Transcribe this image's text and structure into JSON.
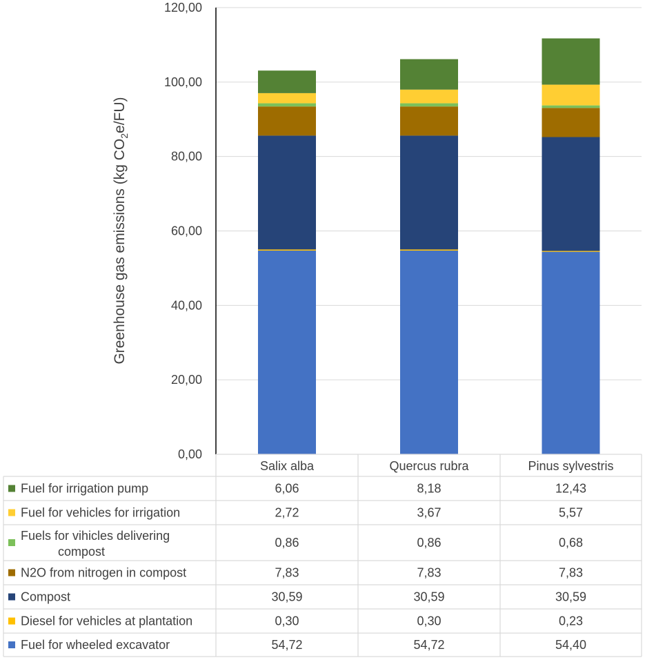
{
  "chart_data": {
    "type": "bar",
    "stacked": true,
    "categories": [
      "Salix alba",
      "Quercus rubra",
      "Pinus sylvestris"
    ],
    "ylabel_main": "Greenhouse gas emissions (kg CO",
    "ylabel_sub": "2",
    "ylabel_tail": "e/FU)",
    "ylim": [
      0,
      120
    ],
    "yticks": [
      0,
      20,
      40,
      60,
      80,
      100,
      120
    ],
    "ytick_labels": [
      "0,00",
      "20,00",
      "40,00",
      "60,00",
      "80,00",
      "100,00",
      "120,00"
    ],
    "grid": true,
    "series": [
      {
        "name": "Fuel for wheeled excavator",
        "color": "#4472C4",
        "values": [
          54.72,
          54.72,
          54.4
        ],
        "labels": [
          "54,72",
          "54,72",
          "54,40"
        ]
      },
      {
        "name": "Diesel for vehicles at plantation",
        "color": "#FFC000",
        "values": [
          0.3,
          0.3,
          0.23
        ],
        "labels": [
          "0,30",
          "0,30",
          "0,23"
        ]
      },
      {
        "name": "Compost",
        "color": "#264478",
        "values": [
          30.59,
          30.59,
          30.59
        ],
        "labels": [
          "30,59",
          "30,59",
          "30,59"
        ]
      },
      {
        "name": "N2O from nitrogen in compost",
        "color": "#9E6C00",
        "values": [
          7.83,
          7.83,
          7.83
        ],
        "labels": [
          "7,83",
          "7,83",
          "7,83"
        ]
      },
      {
        "name": "Fuels for vihicles delivering compost",
        "color": "#7CC05A",
        "values": [
          0.86,
          0.86,
          0.68
        ],
        "labels": [
          "0,86",
          "0,86",
          "0,68"
        ]
      },
      {
        "name": "Fuel for vehicles for irrigation",
        "color": "#FFCE33",
        "values": [
          2.72,
          3.67,
          5.57
        ],
        "labels": [
          "2,72",
          "3,67",
          "5,57"
        ]
      },
      {
        "name": "Fuel for irrigation pump",
        "color": "#548235",
        "values": [
          6.06,
          8.18,
          12.43
        ],
        "labels": [
          "6,06",
          "8,18",
          "12,43"
        ]
      }
    ],
    "table_row_order": [
      6,
      5,
      4,
      3,
      2,
      1,
      0
    ],
    "legend_placement": "data-table-left"
  }
}
